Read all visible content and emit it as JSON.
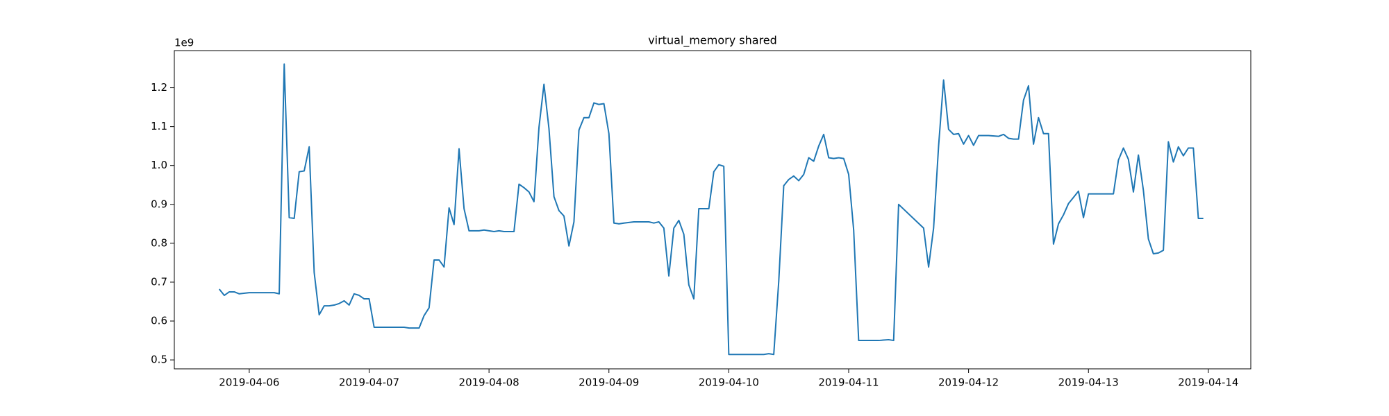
{
  "chart_data": {
    "type": "line",
    "title": "virtual_memory shared",
    "y_offset_label": "1e9",
    "color": "#1f77b4",
    "x": [
      "2019-04-05 18:00",
      "2019-04-05 19:00",
      "2019-04-05 20:00",
      "2019-04-05 21:00",
      "2019-04-05 22:00",
      "2019-04-06 00:00",
      "2019-04-06 01:00",
      "2019-04-06 03:00",
      "2019-04-06 05:00",
      "2019-04-06 06:00",
      "2019-04-06 07:00",
      "2019-04-06 08:00",
      "2019-04-06 09:00",
      "2019-04-06 10:00",
      "2019-04-06 11:00",
      "2019-04-06 12:00",
      "2019-04-06 13:00",
      "2019-04-06 14:00",
      "2019-04-06 15:00",
      "2019-04-06 16:00",
      "2019-04-06 17:00",
      "2019-04-06 18:00",
      "2019-04-06 19:00",
      "2019-04-06 20:00",
      "2019-04-06 21:00",
      "2019-04-06 22:00",
      "2019-04-06 23:00",
      "2019-04-07 00:00",
      "2019-04-07 01:00",
      "2019-04-07 02:00",
      "2019-04-07 04:00",
      "2019-04-07 06:00",
      "2019-04-07 07:00",
      "2019-04-07 08:00",
      "2019-04-07 10:00",
      "2019-04-07 11:00",
      "2019-04-07 12:00",
      "2019-04-07 13:00",
      "2019-04-07 14:00",
      "2019-04-07 15:00",
      "2019-04-07 16:00",
      "2019-04-07 17:00",
      "2019-04-07 18:00",
      "2019-04-07 19:00",
      "2019-04-07 20:00",
      "2019-04-07 22:00",
      "2019-04-07 23:00",
      "2019-04-08 01:00",
      "2019-04-08 02:00",
      "2019-04-08 03:00",
      "2019-04-08 05:00",
      "2019-04-08 06:00",
      "2019-04-08 07:00",
      "2019-04-08 08:00",
      "2019-04-08 09:00",
      "2019-04-08 10:00",
      "2019-04-08 11:00",
      "2019-04-08 12:00",
      "2019-04-08 13:00",
      "2019-04-08 14:00",
      "2019-04-08 15:00",
      "2019-04-08 16:00",
      "2019-04-08 17:00",
      "2019-04-08 18:00",
      "2019-04-08 19:00",
      "2019-04-08 20:00",
      "2019-04-08 21:00",
      "2019-04-08 22:00",
      "2019-04-08 23:00",
      "2019-04-09 00:00",
      "2019-04-09 01:00",
      "2019-04-09 02:00",
      "2019-04-09 03:00",
      "2019-04-09 05:00",
      "2019-04-09 06:00",
      "2019-04-09 08:00",
      "2019-04-09 09:00",
      "2019-04-09 10:00",
      "2019-04-09 11:00",
      "2019-04-09 12:00",
      "2019-04-09 13:00",
      "2019-04-09 14:00",
      "2019-04-09 15:00",
      "2019-04-09 16:00",
      "2019-04-09 17:00",
      "2019-04-09 18:00",
      "2019-04-09 19:00",
      "2019-04-09 20:00",
      "2019-04-09 21:00",
      "2019-04-09 22:00",
      "2019-04-09 23:00",
      "2019-04-10 00:00",
      "2019-04-10 02:00",
      "2019-04-10 04:00",
      "2019-04-10 07:00",
      "2019-04-10 08:00",
      "2019-04-10 09:00",
      "2019-04-10 10:00",
      "2019-04-10 11:00",
      "2019-04-10 12:00",
      "2019-04-10 13:00",
      "2019-04-10 14:00",
      "2019-04-10 15:00",
      "2019-04-10 16:00",
      "2019-04-10 17:00",
      "2019-04-10 18:00",
      "2019-04-10 19:00",
      "2019-04-10 20:00",
      "2019-04-10 21:00",
      "2019-04-10 22:00",
      "2019-04-10 23:00",
      "2019-04-11 00:00",
      "2019-04-11 01:00",
      "2019-04-11 02:00",
      "2019-04-11 04:00",
      "2019-04-11 06:00",
      "2019-04-11 08:00",
      "2019-04-11 09:00",
      "2019-04-11 10:00",
      "2019-04-11 15:00",
      "2019-04-11 16:00",
      "2019-04-11 17:00",
      "2019-04-11 18:00",
      "2019-04-11 19:00",
      "2019-04-11 20:00",
      "2019-04-11 21:00",
      "2019-04-11 22:00",
      "2019-04-11 23:00",
      "2019-04-12 00:00",
      "2019-04-12 01:00",
      "2019-04-12 02:00",
      "2019-04-12 03:00",
      "2019-04-12 04:00",
      "2019-04-12 06:00",
      "2019-04-12 07:00",
      "2019-04-12 08:00",
      "2019-04-12 09:00",
      "2019-04-12 10:00",
      "2019-04-12 11:00",
      "2019-04-12 12:00",
      "2019-04-12 13:00",
      "2019-04-12 14:00",
      "2019-04-12 15:00",
      "2019-04-12 16:00",
      "2019-04-12 17:00",
      "2019-04-12 18:00",
      "2019-04-12 19:00",
      "2019-04-12 20:00",
      "2019-04-12 21:00",
      "2019-04-12 22:00",
      "2019-04-12 23:00",
      "2019-04-13 00:00",
      "2019-04-13 03:00",
      "2019-04-13 05:00",
      "2019-04-13 06:00",
      "2019-04-13 07:00",
      "2019-04-13 08:00",
      "2019-04-13 09:00",
      "2019-04-13 10:00",
      "2019-04-13 11:00",
      "2019-04-13 12:00",
      "2019-04-13 13:00",
      "2019-04-13 14:00",
      "2019-04-13 15:00",
      "2019-04-13 16:00",
      "2019-04-13 17:00",
      "2019-04-13 18:00",
      "2019-04-13 19:00",
      "2019-04-13 20:00",
      "2019-04-13 21:00",
      "2019-04-13 22:00",
      "2019-04-13 23:00"
    ],
    "values": [
      0.682,
      0.666,
      0.675,
      0.675,
      0.67,
      0.673,
      0.673,
      0.673,
      0.673,
      0.67,
      1.261,
      0.866,
      0.864,
      0.984,
      0.986,
      1.048,
      0.725,
      0.616,
      0.639,
      0.639,
      0.641,
      0.645,
      0.652,
      0.641,
      0.67,
      0.666,
      0.657,
      0.657,
      0.584,
      0.584,
      0.584,
      0.584,
      0.584,
      0.582,
      0.582,
      0.614,
      0.634,
      0.757,
      0.757,
      0.739,
      0.891,
      0.848,
      1.043,
      0.889,
      0.832,
      0.832,
      0.834,
      0.83,
      0.832,
      0.83,
      0.83,
      0.952,
      0.943,
      0.932,
      0.907,
      1.098,
      1.209,
      1.095,
      0.92,
      0.884,
      0.87,
      0.793,
      0.855,
      1.091,
      1.123,
      1.123,
      1.161,
      1.157,
      1.159,
      1.082,
      0.852,
      0.85,
      0.852,
      0.855,
      0.855,
      0.855,
      0.852,
      0.855,
      0.839,
      0.716,
      0.839,
      0.859,
      0.823,
      0.693,
      0.657,
      0.889,
      0.889,
      0.889,
      0.984,
      1.002,
      0.998,
      0.514,
      0.514,
      0.514,
      0.514,
      0.516,
      0.514,
      0.702,
      0.948,
      0.964,
      0.973,
      0.961,
      0.977,
      1.02,
      1.011,
      1.05,
      1.08,
      1.02,
      1.018,
      1.02,
      1.018,
      0.977,
      0.834,
      0.55,
      0.55,
      0.55,
      0.552,
      0.55,
      0.9,
      0.839,
      0.739,
      0.839,
      1.05,
      1.22,
      1.093,
      1.08,
      1.082,
      1.055,
      1.077,
      1.052,
      1.077,
      1.077,
      1.077,
      1.075,
      1.08,
      1.07,
      1.068,
      1.068,
      1.168,
      1.205,
      1.055,
      1.123,
      1.082,
      1.082,
      0.798,
      0.85,
      0.873,
      0.902,
      0.918,
      0.934,
      0.866,
      0.927,
      0.927,
      0.927,
      1.014,
      1.045,
      1.016,
      0.932,
      1.027,
      0.936,
      0.811,
      0.773,
      0.775,
      0.782,
      1.061,
      1.009,
      1.048,
      1.025,
      1.045,
      1.045,
      0.864,
      0.864
    ],
    "xlim": [
      "2019-04-05 09:00",
      "2019-04-14 08:30"
    ],
    "xticks": [
      "2019-04-06",
      "2019-04-07",
      "2019-04-08",
      "2019-04-09",
      "2019-04-10",
      "2019-04-11",
      "2019-04-12",
      "2019-04-13",
      "2019-04-14"
    ],
    "ylim": [
      0.477,
      1.2955
    ],
    "yticks": [
      0.5,
      0.6,
      0.7,
      0.8,
      0.9,
      {
        "value": 1,
        "label": "1.0"
      },
      1.1,
      1.2
    ]
  }
}
